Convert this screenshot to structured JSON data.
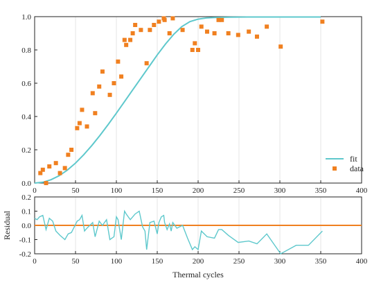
{
  "chart_data": [
    {
      "type": "scatter",
      "xlim": [
        0,
        400
      ],
      "ylim": [
        0,
        1.0
      ],
      "xticks": [
        0,
        50,
        100,
        150,
        200,
        250,
        300,
        350,
        400
      ],
      "yticks": [
        0.0,
        0.2,
        0.4,
        0.6,
        0.8,
        1.0
      ],
      "xtick_labels": [
        "0",
        "50",
        "100",
        "150",
        "200",
        "250",
        "300",
        "350",
        "400"
      ],
      "ytick_labels": [
        "0.0",
        "0.2",
        "0.4",
        "0.6",
        "0.8",
        "1.0"
      ],
      "grid": "vertical",
      "legend": {
        "position": "bottom-right",
        "entries": [
          "fit",
          "data"
        ]
      },
      "series": [
        {
          "name": "fit",
          "type": "line",
          "color": "#5ec8cc",
          "x": [
            0,
            10,
            20,
            30,
            40,
            50,
            60,
            70,
            80,
            90,
            100,
            110,
            120,
            130,
            140,
            150,
            160,
            170,
            180,
            190,
            200,
            210,
            220,
            240,
            260,
            280,
            300,
            320,
            340,
            350
          ],
          "y": [
            0.0,
            0.005,
            0.02,
            0.044,
            0.078,
            0.12,
            0.17,
            0.226,
            0.287,
            0.352,
            0.42,
            0.49,
            0.56,
            0.63,
            0.7,
            0.77,
            0.835,
            0.893,
            0.94,
            0.97,
            0.985,
            0.992,
            0.995,
            0.997,
            0.998,
            0.998,
            0.998,
            0.998,
            0.998,
            0.998
          ]
        },
        {
          "name": "data",
          "type": "scatter",
          "color": "#f08020",
          "x": [
            7,
            10,
            14,
            18,
            26,
            31,
            37,
            41,
            45,
            52,
            55,
            58,
            64,
            71,
            74,
            79,
            83,
            92,
            97,
            102,
            106,
            110,
            112,
            117,
            120,
            123,
            130,
            137,
            141,
            146,
            152,
            158,
            159,
            165,
            169,
            181,
            193,
            196,
            200,
            204,
            211,
            220,
            225,
            229,
            237,
            249,
            262,
            272,
            284,
            301,
            352
          ],
          "y": [
            0.06,
            0.08,
            0.0,
            0.1,
            0.12,
            0.06,
            0.09,
            0.17,
            0.2,
            0.33,
            0.36,
            0.44,
            0.34,
            0.54,
            0.42,
            0.58,
            0.67,
            0.53,
            0.6,
            0.73,
            0.64,
            0.86,
            0.83,
            0.86,
            0.9,
            0.95,
            0.92,
            0.72,
            0.92,
            0.95,
            0.97,
            0.99,
            0.98,
            0.9,
            0.99,
            0.92,
            0.8,
            0.84,
            0.8,
            0.94,
            0.91,
            0.9,
            0.98,
            0.98,
            0.9,
            0.89,
            0.91,
            0.88,
            0.94,
            0.82,
            0.97
          ]
        }
      ]
    },
    {
      "type": "line",
      "ylabel": "Residual",
      "xlabel": "Thermal cycles",
      "xlim": [
        0,
        400
      ],
      "ylim": [
        -0.2,
        0.2
      ],
      "xticks": [
        0,
        50,
        100,
        150,
        200,
        250,
        300,
        350,
        400
      ],
      "yticks": [
        -0.2,
        -0.1,
        0.0,
        0.1,
        0.2
      ],
      "xtick_labels": [
        "0",
        "50",
        "100",
        "150",
        "200",
        "250",
        "300",
        "350",
        "400"
      ],
      "ytick_labels": [
        "-0.2",
        "-0.1",
        "0.0",
        "0.1",
        "0.2"
      ],
      "grid": "vertical",
      "zero_line_color": "#f08020",
      "series": [
        {
          "color": "#5ec8cc",
          "x": [
            0,
            3,
            6,
            10,
            14,
            18,
            22,
            26,
            31,
            37,
            41,
            45,
            52,
            55,
            58,
            61,
            64,
            71,
            74,
            79,
            83,
            88,
            92,
            97,
            100,
            102,
            106,
            110,
            112,
            117,
            120,
            123,
            128,
            132,
            135,
            137,
            141,
            146,
            150,
            152,
            155,
            158,
            159,
            162,
            165,
            167,
            169,
            174,
            181,
            187,
            193,
            196,
            200,
            204,
            211,
            220,
            225,
            229,
            237,
            249,
            262,
            272,
            284,
            301,
            320,
            335,
            352
          ],
          "y": [
            0.05,
            0.04,
            0.06,
            0.07,
            -0.03,
            0.05,
            0.03,
            -0.04,
            -0.07,
            -0.1,
            -0.06,
            -0.05,
            0.03,
            0.04,
            0.07,
            -0.04,
            -0.02,
            0.02,
            -0.08,
            0.03,
            0.0,
            0.04,
            -0.1,
            -0.08,
            0.06,
            0.04,
            -0.1,
            0.1,
            0.08,
            0.04,
            0.06,
            0.08,
            0.1,
            -0.01,
            -0.04,
            -0.17,
            0.02,
            0.03,
            -0.06,
            0.02,
            0.06,
            0.07,
            0.02,
            -0.03,
            0.01,
            -0.04,
            0.02,
            -0.02,
            0.0,
            -0.09,
            -0.17,
            -0.15,
            -0.17,
            -0.04,
            -0.08,
            -0.09,
            -0.03,
            -0.03,
            -0.07,
            -0.12,
            -0.11,
            -0.13,
            -0.06,
            -0.2,
            -0.14,
            -0.14,
            -0.04
          ]
        }
      ]
    }
  ]
}
